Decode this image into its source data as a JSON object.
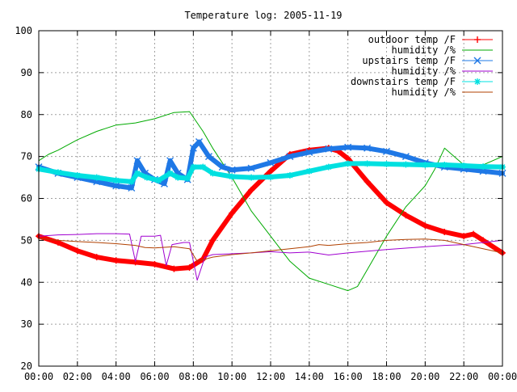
{
  "chart_data": {
    "type": "line",
    "title": "Temperature log: 2005-11-19",
    "xlabel": "",
    "ylabel": "",
    "xlim": [
      0,
      24
    ],
    "ylim": [
      20,
      100
    ],
    "x_ticks": [
      "00:00",
      "02:00",
      "04:00",
      "06:00",
      "08:00",
      "10:00",
      "12:00",
      "14:00",
      "16:00",
      "18:00",
      "20:00",
      "22:00",
      "00:00"
    ],
    "y_ticks": [
      20,
      30,
      40,
      50,
      60,
      70,
      80,
      90,
      100
    ],
    "grid": true,
    "legend_position": "top-right",
    "series": [
      {
        "name": "outdoor temp /F",
        "color": "#ff0000",
        "marker": "plus",
        "points": [
          [
            0,
            51
          ],
          [
            1,
            49.5
          ],
          [
            2,
            47.5
          ],
          [
            3,
            46
          ],
          [
            4,
            45.2
          ],
          [
            5,
            44.8
          ],
          [
            6,
            44.3
          ],
          [
            7,
            43.2
          ],
          [
            7.8,
            43.5
          ],
          [
            8.5,
            45.5
          ],
          [
            9,
            50
          ],
          [
            10,
            56.5
          ],
          [
            11,
            62
          ],
          [
            12,
            66.5
          ],
          [
            13,
            70.5
          ],
          [
            14,
            71.5
          ],
          [
            15,
            72
          ],
          [
            15.5,
            71.3
          ],
          [
            16,
            69.5
          ],
          [
            17,
            64
          ],
          [
            18,
            59
          ],
          [
            19,
            56
          ],
          [
            20,
            53.5
          ],
          [
            21,
            52
          ],
          [
            22,
            51
          ],
          [
            22.5,
            51.5
          ],
          [
            23,
            50
          ],
          [
            24,
            47
          ]
        ]
      },
      {
        "name": "humidity /%",
        "color": "#00aa00",
        "marker": "none",
        "points": [
          [
            0,
            69
          ],
          [
            0.5,
            70.5
          ],
          [
            1,
            71.5
          ],
          [
            2,
            74
          ],
          [
            3,
            76
          ],
          [
            4,
            77.5
          ],
          [
            5,
            78
          ],
          [
            6,
            79
          ],
          [
            7,
            80.5
          ],
          [
            7.8,
            80.7
          ],
          [
            8.5,
            76
          ],
          [
            9,
            72
          ],
          [
            10,
            65
          ],
          [
            11,
            57
          ],
          [
            12,
            51
          ],
          [
            13,
            45
          ],
          [
            14,
            41
          ],
          [
            15,
            39.5
          ],
          [
            16,
            38
          ],
          [
            16.5,
            39
          ],
          [
            17,
            43
          ],
          [
            18,
            51
          ],
          [
            19,
            58
          ],
          [
            20,
            63
          ],
          [
            20.5,
            67
          ],
          [
            21,
            72
          ],
          [
            21.5,
            70
          ],
          [
            22,
            68
          ],
          [
            23,
            68
          ],
          [
            24,
            70
          ]
        ]
      },
      {
        "name": "upstairs temp /F",
        "color": "#1f78e6",
        "marker": "x",
        "points": [
          [
            0,
            67.5
          ],
          [
            1,
            66
          ],
          [
            2,
            65
          ],
          [
            3,
            64
          ],
          [
            4,
            63
          ],
          [
            4.8,
            62.5
          ],
          [
            5.1,
            69
          ],
          [
            5.5,
            66
          ],
          [
            6,
            64.5
          ],
          [
            6.5,
            63.5
          ],
          [
            6.8,
            69
          ],
          [
            7.2,
            66
          ],
          [
            7.7,
            64.5
          ],
          [
            8,
            72
          ],
          [
            8.3,
            73.5
          ],
          [
            8.8,
            70
          ],
          [
            9.5,
            67.5
          ],
          [
            10,
            66.8
          ],
          [
            11,
            67.2
          ],
          [
            12,
            68.5
          ],
          [
            13,
            70
          ],
          [
            14,
            71
          ],
          [
            15,
            71.8
          ],
          [
            16,
            72.2
          ],
          [
            17,
            72
          ],
          [
            18,
            71.2
          ],
          [
            19,
            70
          ],
          [
            20,
            68.5
          ],
          [
            21,
            67.5
          ],
          [
            22,
            67
          ],
          [
            23,
            66.5
          ],
          [
            24,
            66
          ]
        ]
      },
      {
        "name": "humidity /%",
        "color": "#a000d0",
        "marker": "none",
        "points": [
          [
            0,
            51
          ],
          [
            1,
            51.3
          ],
          [
            2,
            51.4
          ],
          [
            3,
            51.6
          ],
          [
            4,
            51.6
          ],
          [
            4.7,
            51.5
          ],
          [
            5,
            45
          ],
          [
            5.3,
            51
          ],
          [
            6,
            51
          ],
          [
            6.3,
            51.2
          ],
          [
            6.6,
            44
          ],
          [
            6.9,
            49
          ],
          [
            7.5,
            49.5
          ],
          [
            7.8,
            49.5
          ],
          [
            8.2,
            40.5
          ],
          [
            8.6,
            46
          ],
          [
            9,
            46.6
          ],
          [
            11,
            47
          ],
          [
            12,
            47.3
          ],
          [
            13,
            47
          ],
          [
            14,
            47.2
          ],
          [
            15,
            46.5
          ],
          [
            16,
            47
          ],
          [
            18,
            47.8
          ],
          [
            20,
            48.5
          ],
          [
            21,
            48.8
          ],
          [
            22,
            49
          ],
          [
            23,
            49.5
          ],
          [
            24,
            50
          ]
        ]
      },
      {
        "name": "downstairs temp /F",
        "color": "#00e0e0",
        "marker": "star",
        "points": [
          [
            0,
            67
          ],
          [
            1,
            66.2
          ],
          [
            2,
            65.5
          ],
          [
            3,
            65
          ],
          [
            4,
            64.3
          ],
          [
            4.8,
            64
          ],
          [
            5.1,
            66
          ],
          [
            5.6,
            65
          ],
          [
            6.2,
            64.3
          ],
          [
            6.8,
            66
          ],
          [
            7.2,
            65
          ],
          [
            7.7,
            64.8
          ],
          [
            8,
            67.5
          ],
          [
            8.5,
            67.5
          ],
          [
            9,
            66
          ],
          [
            10,
            65.2
          ],
          [
            11,
            65
          ],
          [
            12,
            65.1
          ],
          [
            13,
            65.5
          ],
          [
            14,
            66.5
          ],
          [
            15,
            67.5
          ],
          [
            16,
            68.3
          ],
          [
            17,
            68.3
          ],
          [
            18,
            68.2
          ],
          [
            19,
            68.1
          ],
          [
            20,
            68
          ],
          [
            21,
            68
          ],
          [
            22,
            67.8
          ],
          [
            23,
            67.6
          ],
          [
            24,
            67.5
          ]
        ]
      },
      {
        "name": "humidity /%",
        "color": "#b04000",
        "marker": "none",
        "points": [
          [
            0,
            50.5
          ],
          [
            1,
            50
          ],
          [
            2,
            49.7
          ],
          [
            3,
            49.5
          ],
          [
            4,
            49.2
          ],
          [
            5,
            48.8
          ],
          [
            5.5,
            48.3
          ],
          [
            6,
            48.2
          ],
          [
            7,
            48.5
          ],
          [
            7.8,
            48
          ],
          [
            8.2,
            45
          ],
          [
            9,
            46
          ],
          [
            10,
            46.6
          ],
          [
            11,
            47
          ],
          [
            12,
            47.5
          ],
          [
            13,
            48
          ],
          [
            14,
            48.5
          ],
          [
            14.5,
            49
          ],
          [
            15,
            48.8
          ],
          [
            16,
            49.2
          ],
          [
            17,
            49.5
          ],
          [
            18,
            50
          ],
          [
            19,
            50.2
          ],
          [
            20,
            50.3
          ],
          [
            21,
            50
          ],
          [
            22,
            49
          ],
          [
            23,
            48
          ],
          [
            24,
            47
          ]
        ]
      }
    ]
  }
}
